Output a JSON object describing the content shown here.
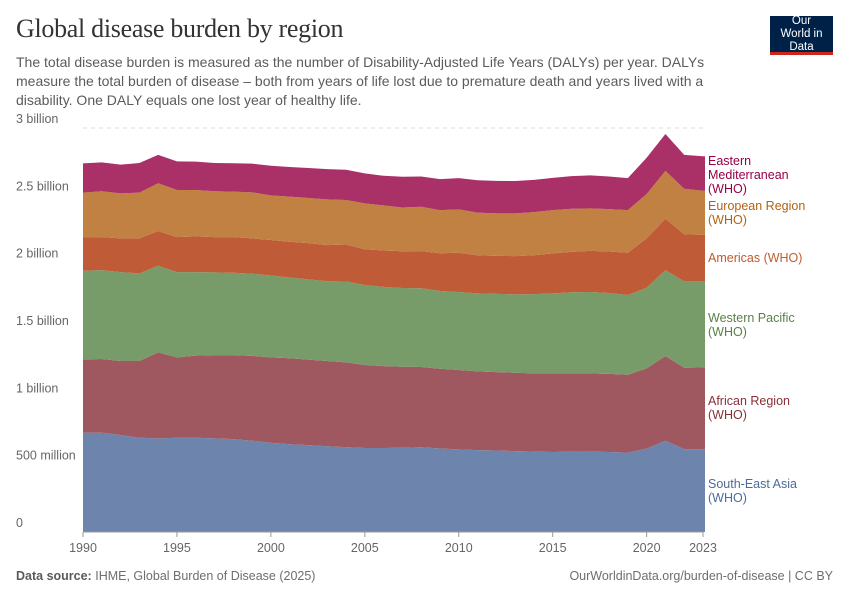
{
  "header": {
    "title": "Global disease burden by region",
    "subtitle": "The total disease burden is measured as the number of Disability-Adjusted Life Years (DALYs) per year. DALYs measure the total burden of disease – both from years of life lost due to premature death and years lived with a disability. One DALY equals one lost year of healthy life.",
    "logo_text": "Our World in Data"
  },
  "footer": {
    "source_label": "Data source:",
    "source_text": "IHME, Global Burden of Disease (2025)",
    "url_text": "OurWorldinData.org/burden-of-disease | CC BY"
  },
  "chart_data": {
    "type": "area",
    "stacked": true,
    "title": "Global disease burden by region",
    "unit": "DALYs",
    "ylim": [
      0,
      3000000000
    ],
    "xlim": [
      1990,
      2023
    ],
    "grid": "horizontal dashed",
    "legend_placement": "right (inline labels)",
    "y_ticks": [
      {
        "value": 0,
        "label": "0"
      },
      {
        "value": 500000000,
        "label": "500 million"
      },
      {
        "value": 1000000000,
        "label": "1 billion"
      },
      {
        "value": 1500000000,
        "label": "1.5 billion"
      },
      {
        "value": 2000000000,
        "label": "2 billion"
      },
      {
        "value": 2500000000,
        "label": "2.5 billion"
      },
      {
        "value": 3000000000,
        "label": "3 billion"
      }
    ],
    "x_ticks": [
      "1990",
      "1995",
      "2000",
      "2005",
      "2010",
      "2015",
      "2020",
      "2023"
    ],
    "x": [
      1990,
      1991,
      1992,
      1993,
      1994,
      1995,
      1996,
      1997,
      1998,
      1999,
      2000,
      2001,
      2002,
      2003,
      2004,
      2005,
      2006,
      2007,
      2008,
      2009,
      2010,
      2011,
      2012,
      2013,
      2014,
      2015,
      2016,
      2017,
      2018,
      2019,
      2020,
      2021,
      2022,
      2023
    ],
    "values_unit": "million DALYs",
    "series": [
      {
        "name": "South-East Asia (WHO)",
        "color": "#6d85ac",
        "label_color": "#4c6a9c",
        "values": [
          737,
          737,
          720,
          700,
          695,
          700,
          700,
          695,
          690,
          678,
          663,
          652,
          645,
          637,
          630,
          624,
          624,
          626,
          629,
          620,
          614,
          608,
          605,
          601,
          597,
          594,
          597,
          597,
          594,
          589,
          619,
          678,
          615,
          615
        ]
      },
      {
        "name": "African Region (WHO)",
        "color": "#9f5860",
        "label_color": "#883039",
        "values": [
          545,
          548,
          550,
          570,
          639,
          597,
          610,
          618,
          623,
          630,
          634,
          638,
          635,
          633,
          630,
          616,
          608,
          601,
          596,
          592,
          589,
          585,
          582,
          582,
          581,
          584,
          581,
          581,
          580,
          579,
          596,
          629,
          605,
          607
        ]
      },
      {
        "name": "Western Pacific (WHO)",
        "color": "#789b6a",
        "label_color": "#578145",
        "values": [
          658,
          660,
          660,
          650,
          643,
          633,
          620,
          615,
          612,
          610,
          608,
          600,
          596,
          592,
          600,
          594,
          588,
          585,
          585,
          578,
          579,
          579,
          581,
          582,
          588,
          594,
          602,
          604,
          601,
          592,
          599,
          638,
          641,
          639
        ]
      },
      {
        "name": "Americas (WHO)",
        "color": "#c05b37",
        "label_color": "#c15a2e",
        "values": [
          250,
          245,
          250,
          260,
          258,
          260,
          265,
          262,
          265,
          262,
          263,
          265,
          269,
          268,
          275,
          266,
          270,
          273,
          276,
          280,
          292,
          283,
          282,
          284,
          289,
          297,
          300,
          306,
          308,
          314,
          366,
          381,
          349,
          346
        ]
      },
      {
        "name": "European Region (WHO)",
        "color": "#c18142",
        "label_color": "#b16214",
        "values": [
          330,
          340,
          335,
          340,
          355,
          350,
          345,
          340,
          338,
          342,
          332,
          335,
          335,
          340,
          330,
          340,
          335,
          325,
          329,
          320,
          322,
          317,
          316,
          317,
          320,
          321,
          320,
          315,
          315,
          316,
          330,
          356,
          339,
          327
        ]
      },
      {
        "name": "Eastern Mediterranean (WHO)",
        "color": "#aa3068",
        "label_color": "#970046",
        "values": [
          217,
          215,
          213,
          220,
          210,
          212,
          210,
          210,
          210,
          213,
          220,
          220,
          223,
          225,
          225,
          223,
          220,
          228,
          225,
          230,
          232,
          240,
          241,
          240,
          240,
          240,
          243,
          245,
          242,
          238,
          269,
          273,
          251,
          256
        ]
      }
    ]
  }
}
